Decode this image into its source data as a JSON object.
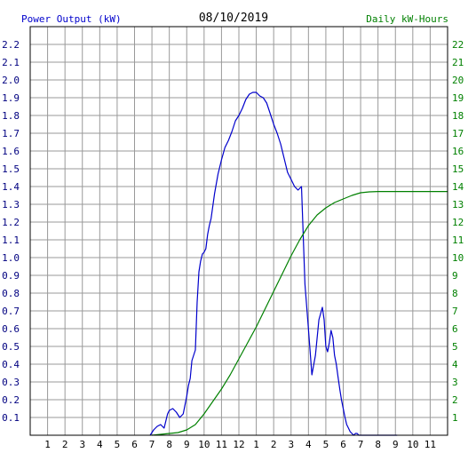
{
  "chart_data": {
    "type": "line",
    "title": "08/10/2019",
    "ylabel": "Power Output (kW)",
    "y2label": "Daily kW-Hours",
    "colors": {
      "power": "#0000cc",
      "energy": "#008000",
      "grid": "#999999",
      "axis": "#000000"
    },
    "x_ticks": [
      "1",
      "2",
      "3",
      "4",
      "5",
      "6",
      "7",
      "8",
      "9",
      "10",
      "11",
      "12",
      "1",
      "2",
      "3",
      "4",
      "5",
      "6",
      "7",
      "8",
      "9",
      "10",
      "11"
    ],
    "x_range_hours": [
      0,
      24
    ],
    "y_ticks": [
      "0.1",
      "0.2",
      "0.3",
      "0.4",
      "0.5",
      "0.6",
      "0.7",
      "0.8",
      "0.9",
      "1.0",
      "1.1",
      "1.2",
      "1.3",
      "1.4",
      "1.5",
      "1.6",
      "1.7",
      "1.8",
      "1.9",
      "2.0",
      "2.1",
      "2.2"
    ],
    "y_range": [
      0,
      2.3
    ],
    "y2_ticks": [
      "1",
      "2",
      "3",
      "4",
      "5",
      "6",
      "7",
      "8",
      "9",
      "10",
      "11",
      "12",
      "13",
      "14",
      "15",
      "16",
      "17",
      "18",
      "19",
      "20",
      "21",
      "22"
    ],
    "y2_range": [
      0,
      23
    ],
    "grid": true,
    "series": [
      {
        "name": "Power Output (kW)",
        "axis": "left",
        "x": [
          6.9,
          7.1,
          7.3,
          7.5,
          7.7,
          7.9,
          8.0,
          8.2,
          8.4,
          8.6,
          8.8,
          9.0,
          9.1,
          9.2,
          9.3,
          9.5,
          9.6,
          9.7,
          9.8,
          9.9,
          10.0,
          10.1,
          10.2,
          10.3,
          10.4,
          10.6,
          10.8,
          11.0,
          11.2,
          11.4,
          11.6,
          11.8,
          12.0,
          12.2,
          12.4,
          12.6,
          12.8,
          13.0,
          13.2,
          13.4,
          13.6,
          13.8,
          14.0,
          14.2,
          14.4,
          14.6,
          14.8,
          15.0,
          15.2,
          15.4,
          15.6,
          15.8,
          16.0,
          16.2,
          16.4,
          16.6,
          16.8,
          16.9,
          17.0,
          17.1,
          17.2,
          17.3,
          17.4,
          17.5,
          17.6,
          17.7,
          17.8,
          17.9,
          18.0,
          18.1,
          18.2,
          18.3,
          18.4,
          18.5,
          18.6,
          18.7,
          18.8,
          18.9,
          19.0,
          19.2,
          19.4,
          19.6,
          19.8,
          20.0,
          20.2,
          20.4,
          20.6,
          20.9,
          21.1
        ],
        "y": [
          0.0,
          0.03,
          0.05,
          0.06,
          0.04,
          0.12,
          0.14,
          0.15,
          0.13,
          0.1,
          0.12,
          0.22,
          0.28,
          0.32,
          0.42,
          0.48,
          0.75,
          0.92,
          0.98,
          1.02,
          1.03,
          1.05,
          1.13,
          1.18,
          1.22,
          1.36,
          1.47,
          1.55,
          1.62,
          1.66,
          1.71,
          1.77,
          1.8,
          1.84,
          1.89,
          1.92,
          1.93,
          1.93,
          1.91,
          1.9,
          1.87,
          1.81,
          1.75,
          1.7,
          1.64,
          1.56,
          1.48,
          1.44,
          1.4,
          1.38,
          1.4,
          0.85,
          0.6,
          0.34,
          0.45,
          0.65,
          0.72,
          0.65,
          0.5,
          0.47,
          0.52,
          0.59,
          0.55,
          0.45,
          0.4,
          0.33,
          0.26,
          0.2,
          0.15,
          0.1,
          0.06,
          0.04,
          0.02,
          0.01,
          0.0,
          0.01,
          0.01,
          0.0,
          0.0,
          0.0,
          0.0,
          0.0,
          0.0,
          0.0,
          0.0,
          0.0,
          0.0,
          0.0,
          0.0
        ]
      },
      {
        "name": "Daily kW-Hours",
        "axis": "right",
        "x": [
          7.0,
          8.0,
          8.5,
          9.0,
          9.5,
          10.0,
          10.5,
          11.0,
          11.5,
          12.0,
          12.5,
          13.0,
          13.5,
          14.0,
          14.5,
          15.0,
          15.5,
          16.0,
          16.5,
          17.0,
          17.5,
          18.0,
          18.5,
          19.0,
          19.5,
          20.0,
          20.5,
          21.0,
          22.0,
          23.0,
          24.0
        ],
        "y": [
          0.0,
          0.1,
          0.15,
          0.3,
          0.6,
          1.2,
          1.9,
          2.6,
          3.4,
          4.3,
          5.2,
          6.1,
          7.1,
          8.1,
          9.1,
          10.1,
          11.0,
          11.8,
          12.4,
          12.8,
          13.1,
          13.3,
          13.5,
          13.65,
          13.7,
          13.72,
          13.72,
          13.72,
          13.72,
          13.72,
          13.72
        ]
      }
    ]
  }
}
